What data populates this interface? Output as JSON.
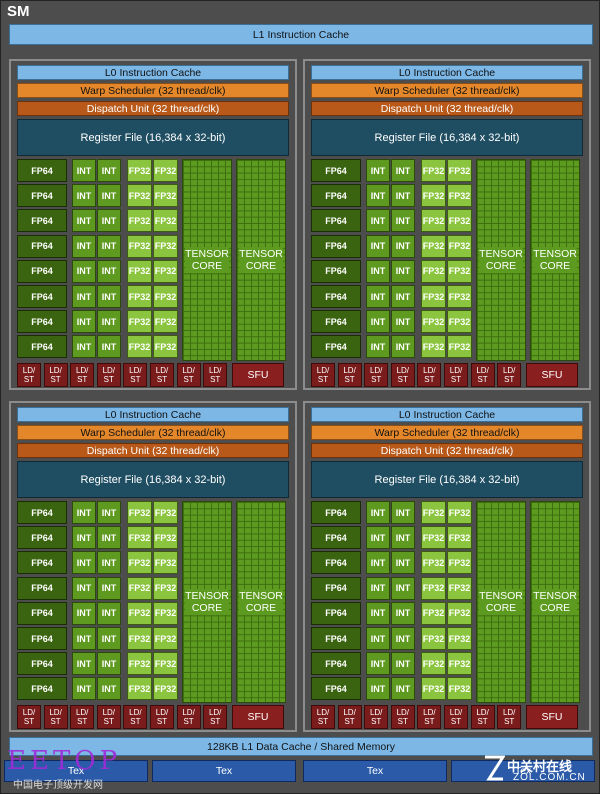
{
  "sm": {
    "title": "SM"
  },
  "l1_instruction_cache": "L1 Instruction Cache",
  "quadrant": {
    "l0_cache": "L0 Instruction Cache",
    "warp_scheduler": "Warp Scheduler (32 thread/clk)",
    "dispatch_unit": "Dispatch Unit (32 thread/clk)",
    "register_file": "Register File (16,384 x 32-bit)",
    "fp64_label": "FP64",
    "int_label": "INT",
    "fp32_label": "FP32",
    "tensor_line1": "TENSOR",
    "tensor_line2": "CORE",
    "ldst_line1": "LD/",
    "ldst_line2": "ST",
    "sfu": "SFU",
    "rows": 8,
    "ldst_count": 8,
    "count": 4
  },
  "l1_data_cache": "128KB L1 Data Cache / Shared Memory",
  "tex_units": [
    "Tex",
    "Tex",
    "Tex",
    "Tex"
  ],
  "watermarks": {
    "left_logo": "EETOP",
    "left_sub": "中国电子顶级开发网",
    "right_logo": "中关村在线",
    "right_sub": "ZOL.COM.CN"
  },
  "colors": {
    "background": "#4d4d4d",
    "cache": "#7cb7e6",
    "warp_scheduler": "#e3872a",
    "dispatch_unit": "#b8591a",
    "register_file": "#1f4e63",
    "fp64": "#3b6410",
    "int": "#5f9a20",
    "fp32": "#8bc53f",
    "tensor_core": "#5c9b1f",
    "ldst": "#7a1c1c",
    "sfu": "#8a1f1f",
    "tex": "#2a5aa8"
  }
}
